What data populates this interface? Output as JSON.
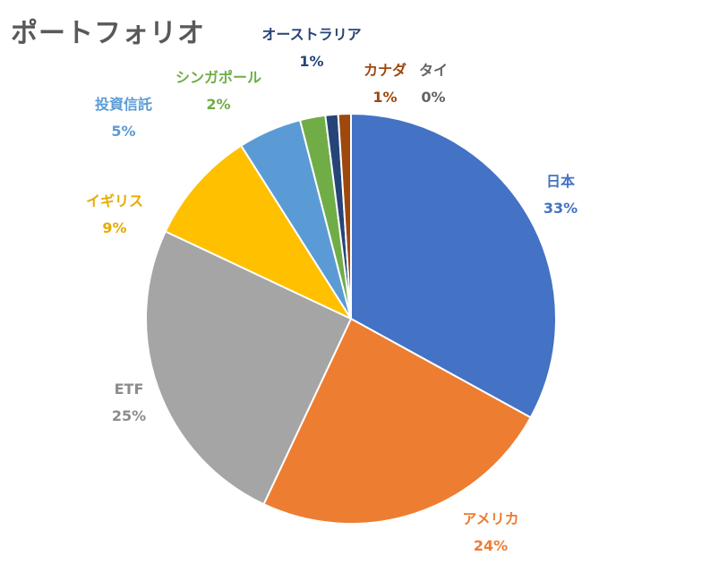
{
  "chart_data": {
    "type": "pie",
    "title": "ポートフォリオ",
    "slices": [
      {
        "name": "日本",
        "value": 33,
        "label": "33%",
        "color": "#4472C4"
      },
      {
        "name": "アメリカ",
        "value": 24,
        "label": "24%",
        "color": "#ED7D31"
      },
      {
        "name": "ETF",
        "value": 25,
        "label": "25%",
        "color": "#A5A5A5"
      },
      {
        "name": "イギリス",
        "value": 9,
        "label": "9%",
        "color": "#FFC000"
      },
      {
        "name": "投資信託",
        "value": 5,
        "label": "5%",
        "color": "#5B9BD5"
      },
      {
        "name": "シンガポール",
        "value": 2,
        "label": "2%",
        "color": "#70AD47"
      },
      {
        "name": "オーストラリア",
        "value": 1,
        "label": "1%",
        "color": "#264478"
      },
      {
        "name": "カナダ",
        "value": 1,
        "label": "1%",
        "color": "#9E480E"
      },
      {
        "name": "タイ",
        "value": 0,
        "label": "0%",
        "color": "#636363"
      }
    ],
    "start_angle": "12 o'clock",
    "direction": "clockwise",
    "legend": "none",
    "data_labels": "outside"
  }
}
